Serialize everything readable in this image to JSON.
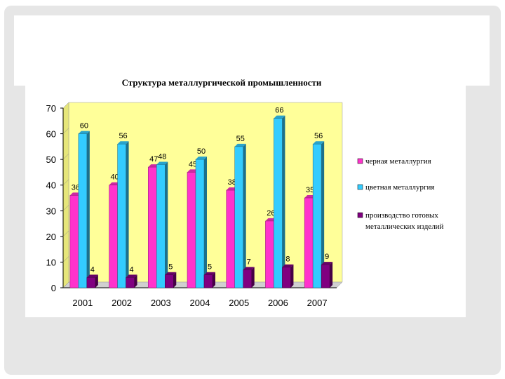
{
  "chart_data": {
    "type": "bar",
    "title": "Структура металлургической промышленности",
    "categories": [
      "2001",
      "2002",
      "2003",
      "2004",
      "2005",
      "2006",
      "2007"
    ],
    "series": [
      {
        "name": "черная металлургия",
        "color": "#ff33cc",
        "values": [
          36,
          40,
          47,
          45,
          38,
          26,
          35
        ]
      },
      {
        "name": "цветная металлургия",
        "color": "#33ccff",
        "values": [
          60,
          56,
          48,
          50,
          55,
          66,
          56
        ]
      },
      {
        "name": "производство готовых металлических изделий",
        "color": "#800080",
        "values": [
          4,
          4,
          5,
          5,
          7,
          8,
          9
        ]
      }
    ],
    "yticks": [
      "0",
      "10",
      "20",
      "30",
      "40",
      "50",
      "60",
      "70"
    ],
    "ylim": [
      0,
      70
    ],
    "grid": false,
    "legend_position": "right",
    "plot_background": "#ffff99"
  }
}
